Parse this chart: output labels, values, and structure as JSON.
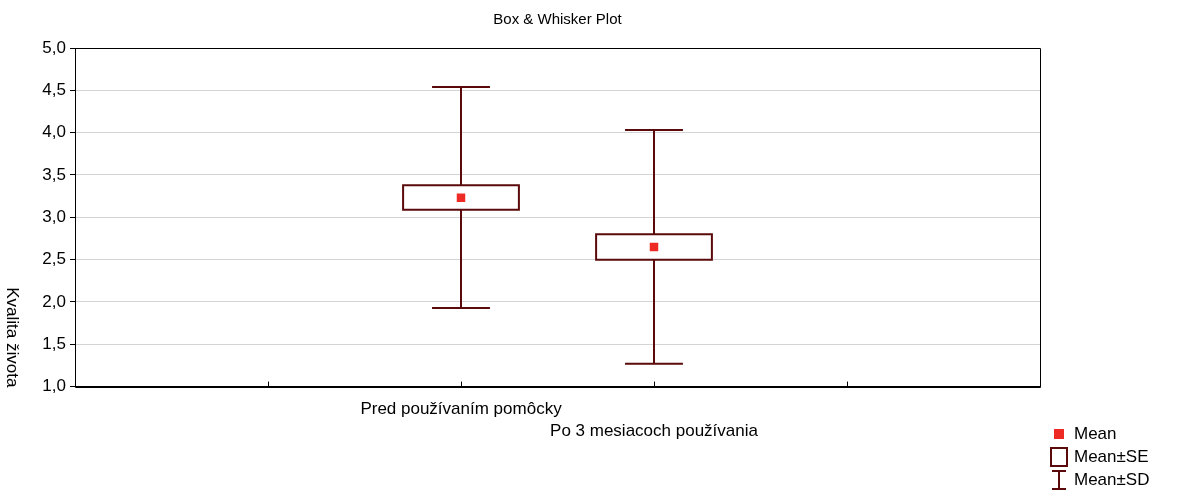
{
  "chart_data": {
    "type": "box",
    "title": "Box & Whisker Plot",
    "ylabel": "Kvalita života",
    "categories": [
      "Pred používaním pomôcky",
      "Po 3 mesiacoch používania"
    ],
    "series": [
      {
        "name": "Mean",
        "type": "scatter",
        "marker": "square",
        "color": "#ee2a24",
        "x": [
          "Pred používaním pomôcky",
          "Po 3 mesiacoch používania"
        ],
        "values": [
          3.23,
          2.65
        ]
      },
      {
        "name": "Mean±SE",
        "color": "#5a0a0a",
        "boxes": [
          {
            "low": 1.93,
            "q1": 3.09,
            "q3": 3.38,
            "high": 4.54
          },
          {
            "low": 1.27,
            "q1": 2.5,
            "q3": 2.8,
            "high": 4.03
          }
        ]
      }
    ],
    "annotations": [
      "Mean±SD"
    ],
    "ylim": [
      1,
      5
    ],
    "yticks": [
      {
        "value": 1,
        "label": "1,0"
      },
      {
        "value": 1.5,
        "label": "1,5"
      },
      {
        "value": 2,
        "label": "2,0"
      },
      {
        "value": 2.5,
        "label": "2,5"
      },
      {
        "value": 3,
        "label": "3,0"
      },
      {
        "value": 3.5,
        "label": "3,5"
      },
      {
        "value": 4,
        "label": "4,0"
      },
      {
        "value": 4.5,
        "label": "4,5"
      },
      {
        "value": 5,
        "label": "5,0"
      }
    ],
    "grid": "y",
    "legend": "bottom right"
  }
}
